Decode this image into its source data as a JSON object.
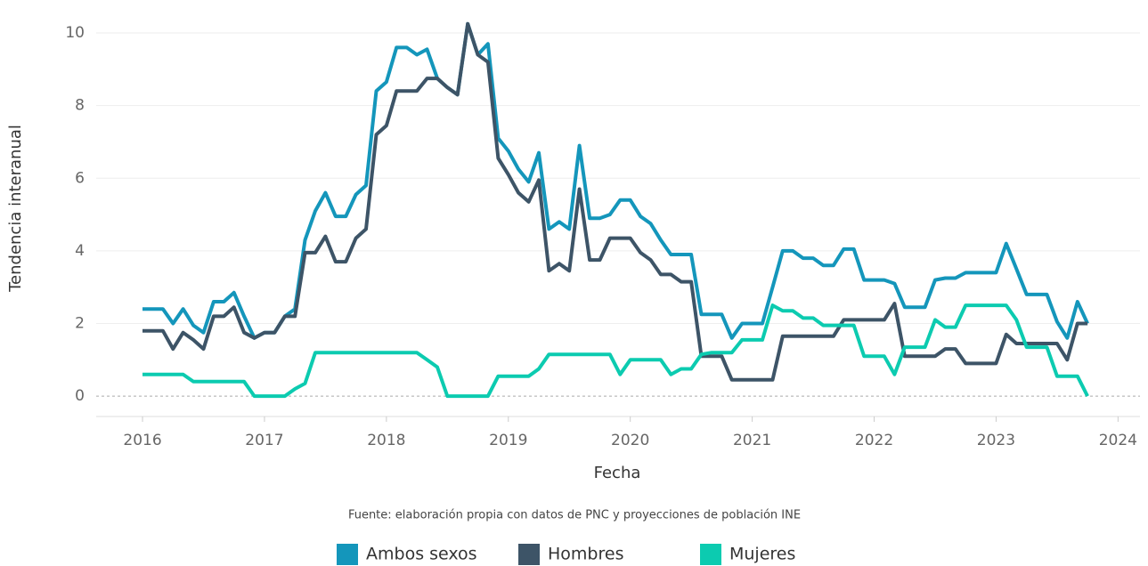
{
  "chart_data": {
    "type": "line",
    "x_label": "Fecha",
    "y_label": "Tendencia interanual",
    "source": "Fuente: elaboración propia con datos de PNC y proyecciones de población INE",
    "x": [
      2016,
      2016.083,
      2016.167,
      2016.25,
      2016.333,
      2016.417,
      2016.5,
      2016.583,
      2016.667,
      2016.75,
      2016.833,
      2016.917,
      2017,
      2017.083,
      2017.167,
      2017.25,
      2017.333,
      2017.417,
      2017.5,
      2017.583,
      2017.667,
      2017.75,
      2017.833,
      2017.917,
      2018,
      2018.083,
      2018.167,
      2018.25,
      2018.333,
      2018.417,
      2018.5,
      2018.583,
      2018.667,
      2018.75,
      2018.833,
      2018.917,
      2019,
      2019.083,
      2019.167,
      2019.25,
      2019.333,
      2019.417,
      2019.5,
      2019.583,
      2019.667,
      2019.75,
      2019.833,
      2019.917,
      2020,
      2020.083,
      2020.167,
      2020.25,
      2020.333,
      2020.417,
      2020.5,
      2020.583,
      2020.667,
      2020.75,
      2020.833,
      2020.917,
      2021,
      2021.083,
      2021.167,
      2021.25,
      2021.333,
      2021.417,
      2021.5,
      2021.583,
      2021.667,
      2021.75,
      2021.833,
      2021.917,
      2022,
      2022.083,
      2022.167,
      2022.25,
      2022.333,
      2022.417,
      2022.5,
      2022.583,
      2022.667,
      2022.75,
      2022.833,
      2022.917,
      2023,
      2023.083,
      2023.167,
      2023.25,
      2023.333,
      2023.417,
      2023.5,
      2023.583,
      2023.667,
      2023.75
    ],
    "series": [
      {
        "name": "Ambos sexos",
        "color": "#1496bb",
        "values": [
          2.4,
          2.4,
          2.4,
          2.0,
          2.4,
          1.95,
          1.75,
          2.6,
          2.6,
          2.85,
          2.2,
          1.6,
          1.75,
          1.75,
          2.2,
          2.4,
          4.3,
          5.1,
          5.6,
          4.95,
          4.95,
          5.55,
          5.8,
          8.4,
          8.65,
          9.6,
          9.6,
          9.4,
          9.55,
          8.75,
          8.5,
          8.3,
          10.25,
          9.4,
          9.7,
          7.1,
          6.75,
          6.25,
          5.9,
          6.7,
          4.6,
          4.8,
          4.6,
          6.9,
          4.9,
          4.9,
          5.0,
          5.4,
          5.4,
          4.95,
          4.75,
          4.3,
          3.9,
          3.9,
          3.9,
          2.25,
          2.25,
          2.25,
          1.6,
          2.0,
          2.0,
          2.0,
          3.0,
          4.0,
          4.0,
          3.8,
          3.8,
          3.6,
          3.6,
          4.05,
          4.05,
          3.2,
          3.2,
          3.2,
          3.1,
          2.45,
          2.45,
          2.45,
          3.2,
          3.25,
          3.25,
          3.4,
          3.4,
          3.4,
          3.4,
          4.2,
          3.5,
          2.8,
          2.8,
          2.8,
          2.05,
          1.6,
          2.6,
          2.0
        ]
      },
      {
        "name": "Hombres",
        "color": "#3d5467",
        "values": [
          1.8,
          1.8,
          1.8,
          1.3,
          1.75,
          1.55,
          1.3,
          2.2,
          2.2,
          2.45,
          1.75,
          1.6,
          1.75,
          1.75,
          2.2,
          2.2,
          3.95,
          3.95,
          4.4,
          3.7,
          3.7,
          4.35,
          4.6,
          7.2,
          7.45,
          8.4,
          8.4,
          8.4,
          8.75,
          8.75,
          8.5,
          8.3,
          10.25,
          9.4,
          9.2,
          6.55,
          6.1,
          5.6,
          5.35,
          5.95,
          3.45,
          3.65,
          3.45,
          5.7,
          3.75,
          3.75,
          4.35,
          4.35,
          4.35,
          3.95,
          3.75,
          3.35,
          3.35,
          3.15,
          3.15,
          1.1,
          1.1,
          1.1,
          0.45,
          0.45,
          0.45,
          0.45,
          0.45,
          1.65,
          1.65,
          1.65,
          1.65,
          1.65,
          1.65,
          2.1,
          2.1,
          2.1,
          2.1,
          2.1,
          2.55,
          1.1,
          1.1,
          1.1,
          1.1,
          1.3,
          1.3,
          0.9,
          0.9,
          0.9,
          0.9,
          1.7,
          1.45,
          1.45,
          1.45,
          1.45,
          1.45,
          1.0,
          2.0,
          2.0
        ]
      },
      {
        "name": "Mujeres",
        "color": "#0ccbb0",
        "values": [
          0.6,
          0.6,
          0.6,
          0.6,
          0.6,
          0.4,
          0.4,
          0.4,
          0.4,
          0.4,
          0.4,
          0.0,
          0.0,
          0.0,
          0.0,
          0.2,
          0.35,
          1.2,
          1.2,
          1.2,
          1.2,
          1.2,
          1.2,
          1.2,
          1.2,
          1.2,
          1.2,
          1.2,
          1.0,
          0.8,
          0.0,
          0.0,
          0.0,
          0.0,
          0.0,
          0.55,
          0.55,
          0.55,
          0.55,
          0.75,
          1.15,
          1.15,
          1.15,
          1.15,
          1.15,
          1.15,
          1.15,
          0.6,
          1.0,
          1.0,
          1.0,
          1.0,
          0.6,
          0.75,
          0.75,
          1.15,
          1.2,
          1.2,
          1.2,
          1.55,
          1.55,
          1.55,
          2.5,
          2.35,
          2.35,
          2.15,
          2.15,
          1.95,
          1.95,
          1.95,
          1.95,
          1.1,
          1.1,
          1.1,
          0.6,
          1.35,
          1.35,
          1.35,
          2.1,
          1.9,
          1.9,
          2.5,
          2.5,
          2.5,
          2.5,
          2.5,
          2.1,
          1.35,
          1.35,
          1.35,
          0.55,
          0.55,
          0.55,
          0.0
        ]
      }
    ],
    "xlim": [
      2015.62,
      2024.18
    ],
    "xticks": [
      2016,
      2017,
      2018,
      2019,
      2020,
      2021,
      2022,
      2023,
      2024
    ],
    "ylim": [
      -0.56,
      10.54
    ],
    "yticks": [
      0,
      2,
      4,
      6,
      8,
      10
    ],
    "grid": true,
    "legend": "bottom"
  }
}
